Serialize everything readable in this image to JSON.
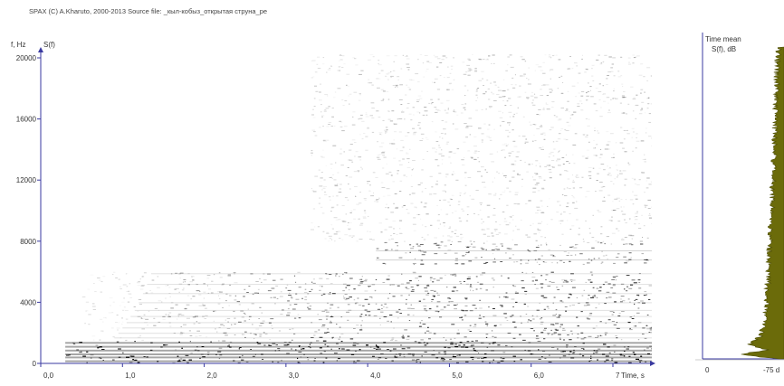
{
  "header": "SPAX  (C)  A.Kharuto,   2000-2013   Source file:  _кыл-кобыз_открытая струна_ре",
  "chart_data": [
    {
      "type": "heatmap",
      "title": "",
      "ylabel": "f, Hz",
      "y_legend_label": "S(f)",
      "xlabel": "Time, s",
      "xlim": [
        0,
        7.5
      ],
      "ylim": [
        0,
        20500
      ],
      "x_ticks": [
        0,
        1,
        2,
        3,
        4,
        5,
        6,
        7
      ],
      "x_tick_labels": [
        "0,0",
        "1,0",
        "2,0",
        "3,0",
        "4,0",
        "5,0",
        "6,0",
        "7"
      ],
      "y_ticks": [
        0,
        4000,
        8000,
        12000,
        16000,
        20000
      ],
      "y_tick_labels": [
        "0",
        "4000",
        "8000",
        "12000",
        "16000",
        "20000"
      ],
      "grid": false,
      "colormap": "grayscale, darker = higher level",
      "onset_time_s": 0.3,
      "features": [
        {
          "description": "dense energy band",
          "f_range_hz": [
            0,
            1500
          ],
          "t_range_s": [
            0.3,
            7.5
          ],
          "level": 0.85
        },
        {
          "description": "harmonic stripes",
          "f_range_hz": [
            1500,
            6000
          ],
          "t_range_s": [
            0.5,
            7.5
          ],
          "level": 0.45
        },
        {
          "description": "band",
          "f_range_hz": [
            6500,
            8000
          ],
          "t_range_s": [
            4.1,
            7.5
          ],
          "level": 0.35
        },
        {
          "description": "faint upper partials",
          "f_range_hz": [
            8000,
            21000
          ],
          "t_range_s": [
            3.3,
            7.5
          ],
          "level": 0.12
        }
      ],
      "color": "#808080"
    },
    {
      "type": "area",
      "title": "Time mean",
      "ylabel": "S(f), dB",
      "x_tick_labels": [
        "0",
        "-75 d"
      ],
      "orientation": "vertical",
      "fill_color": "#6b6b0a",
      "profile_f_hz": [
        0,
        300,
        600,
        900,
        1500,
        2500,
        4000,
        6000,
        8000,
        10000,
        12000,
        14000,
        16000,
        18000,
        20000,
        20500
      ],
      "profile_level_norm": [
        0.1,
        0.55,
        0.2,
        0.45,
        0.3,
        0.25,
        0.22,
        0.2,
        0.18,
        0.16,
        0.14,
        0.12,
        0.11,
        0.1,
        0.08,
        0.05
      ]
    }
  ]
}
